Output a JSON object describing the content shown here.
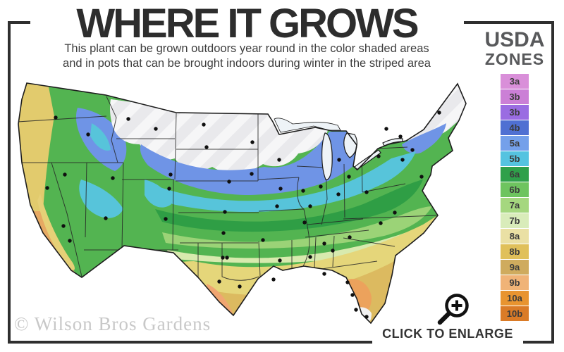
{
  "header": {
    "title": "WHERE IT GROWS",
    "subtitle_line1": "This plant can be grown outdoors year round in the color shaded areas",
    "subtitle_line2": "and in pots that can be brought indoors during winter in the striped area"
  },
  "legend": {
    "heading_line1": "USDA",
    "heading_line2": "ZONES",
    "zones": [
      {
        "label": "3a",
        "color": "#d98fd9"
      },
      {
        "label": "3b",
        "color": "#cb7fd6"
      },
      {
        "label": "3b",
        "color": "#9a6ce2"
      },
      {
        "label": "4b",
        "color": "#4f70d2"
      },
      {
        "label": "5a",
        "color": "#74a0ea"
      },
      {
        "label": "5b",
        "color": "#55c3e0"
      },
      {
        "label": "6a",
        "color": "#2fa04a"
      },
      {
        "label": "6b",
        "color": "#6ec45f"
      },
      {
        "label": "7a",
        "color": "#a5d77f"
      },
      {
        "label": "7b",
        "color": "#d9ecba"
      },
      {
        "label": "8a",
        "color": "#eae0a4"
      },
      {
        "label": "8b",
        "color": "#e0c05a"
      },
      {
        "label": "9a",
        "color": "#cfab5e"
      },
      {
        "label": "9b",
        "color": "#f0b377"
      },
      {
        "label": "10a",
        "color": "#e89430"
      },
      {
        "label": "10b",
        "color": "#da7b27"
      }
    ]
  },
  "footer": {
    "watermark": "© Wilson Bros Gardens",
    "enlarge_label": "CLICK TO ENLARGE"
  },
  "colors": {
    "frame": "#2f2f2f",
    "title_text": "#2d2d2d",
    "legend_heading": "#58595b",
    "cold_striped_region": "#e9e9ec",
    "watermark_text": "#c8c8c8"
  }
}
